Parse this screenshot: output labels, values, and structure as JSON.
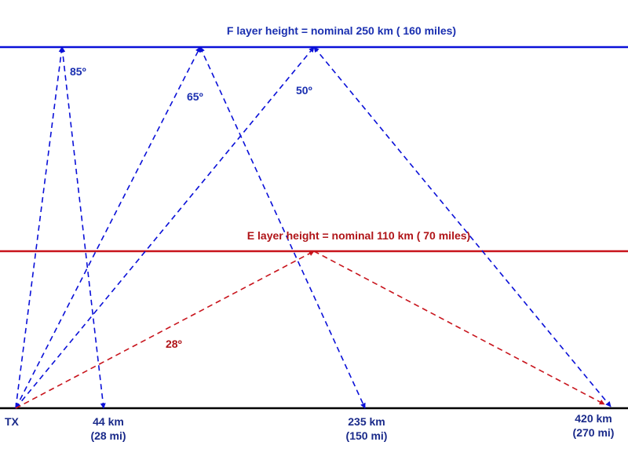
{
  "colors": {
    "f_layer": "#0a10d8",
    "e_layer": "#c8141c",
    "ground": "#000000",
    "f_label": "#1a2fb0",
    "e_label": "#b01418",
    "ground_label": "#1a2a8a"
  },
  "f_layer": {
    "label": "F layer height = nominal 250 km ( 160 miles)"
  },
  "e_layer": {
    "label": "E layer height = nominal 110 km ( 70 miles)"
  },
  "transmitter": {
    "label": "TX"
  },
  "paths": {
    "f85": {
      "angle_label": "85º",
      "distance_km": "44 km",
      "distance_mi": "(28 mi)"
    },
    "f65": {
      "angle_label": "65º",
      "distance_km": "235 km",
      "distance_mi": "(150 mi)"
    },
    "f50": {
      "angle_label": "50º",
      "distance_km": "420 km",
      "distance_mi": "(270 mi)"
    },
    "e28": {
      "angle_label": "28º"
    }
  }
}
